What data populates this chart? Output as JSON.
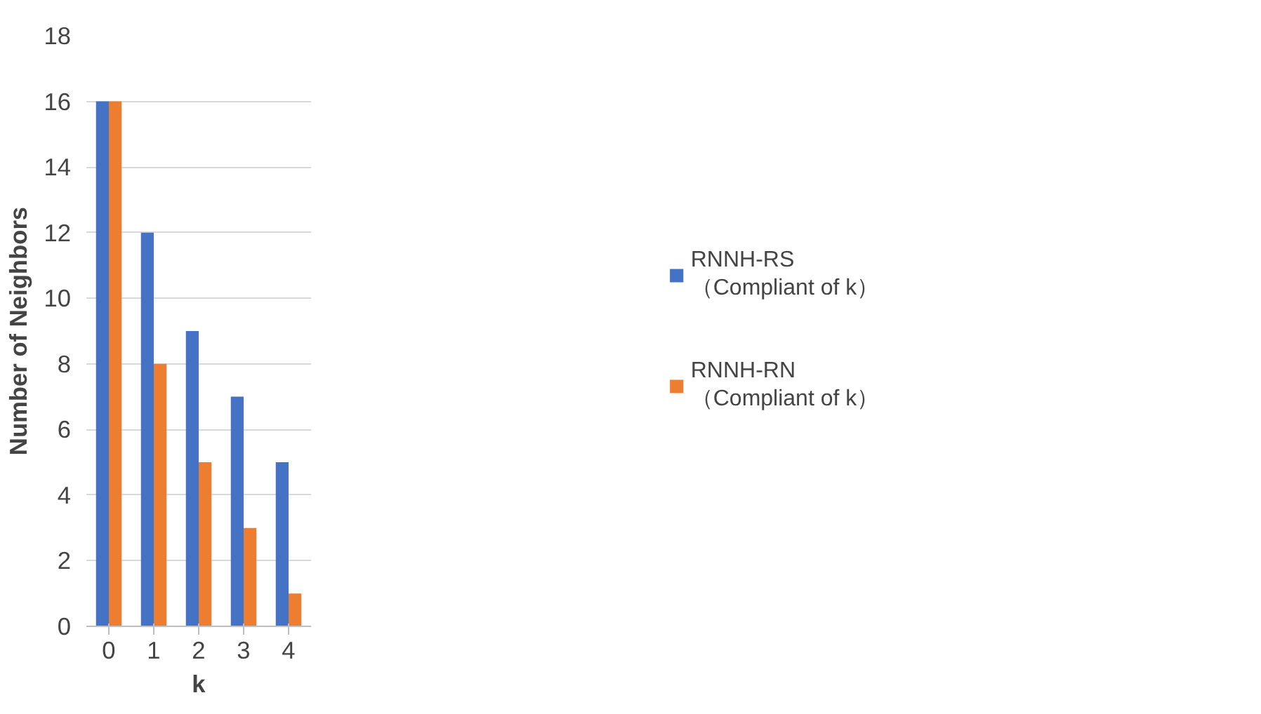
{
  "chart_data": {
    "type": "bar",
    "xlabel": "k",
    "ylabel": "Number of Neighbors",
    "categories": [
      "0",
      "1",
      "2",
      "3",
      "4"
    ],
    "series": [
      {
        "name": "RNNH-RS\n（Compliant of k）",
        "color": "#4472c4",
        "values": [
          16,
          12,
          9,
          7,
          5
        ]
      },
      {
        "name": "RNNH-RN\n（Compliant of k）",
        "color": "#ed7d31",
        "values": [
          16,
          8,
          5,
          3,
          1
        ]
      }
    ],
    "ylim": [
      0,
      18
    ],
    "yticks": [
      0,
      2,
      4,
      6,
      8,
      10,
      12,
      14,
      16,
      18
    ],
    "grid": "y",
    "legend": "right"
  }
}
